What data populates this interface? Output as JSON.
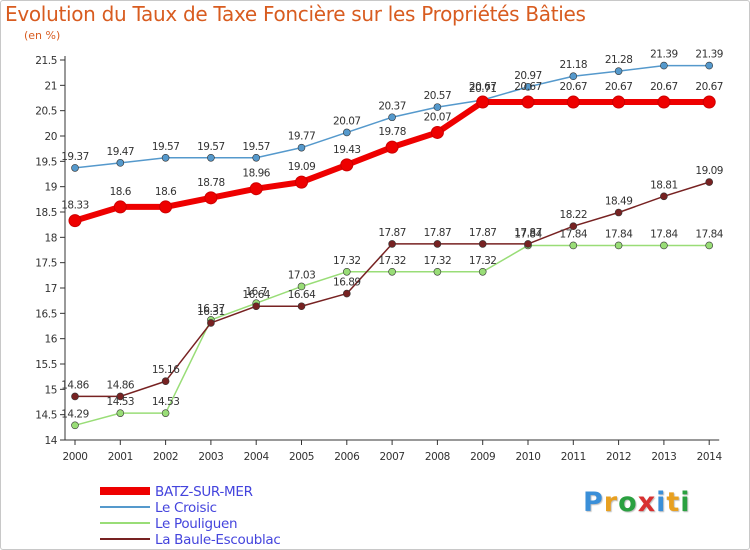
{
  "header": {
    "title": "Evolution du Taux de Taxe Foncière sur les Propriétés Bâties",
    "unit": "(en %)"
  },
  "brand": {
    "letters": [
      "P",
      "r",
      "o",
      "x",
      "i",
      "t",
      "i"
    ],
    "colors": [
      "#3a8fd8",
      "#e8a020",
      "#2aa040",
      "#d83030",
      "#3a8fd8",
      "#e8a020",
      "#2aa040"
    ]
  },
  "chart_data": {
    "type": "line",
    "x": [
      "2000",
      "2001",
      "2002",
      "2003",
      "2004",
      "2005",
      "2006",
      "2007",
      "2008",
      "2009",
      "2010",
      "2011",
      "2012",
      "2013",
      "2014"
    ],
    "ylim": [
      14,
      21.5
    ],
    "yticks": [
      14,
      14.5,
      15,
      15.5,
      16,
      16.5,
      17,
      17.5,
      18,
      18.5,
      19,
      19.5,
      20,
      20.5,
      21,
      21.5
    ],
    "grid": false,
    "legend_position": "bottom-left",
    "series": [
      {
        "name": "BATZ-SUR-MER",
        "color": "#ee0000",
        "width": 6,
        "marker": 6,
        "values": [
          18.33,
          18.6,
          18.6,
          18.78,
          18.96,
          19.09,
          19.43,
          19.78,
          20.07,
          20.67,
          20.67,
          20.67,
          20.67,
          20.67,
          20.67
        ],
        "labels": [
          "18.33",
          "18.6",
          "18.6",
          "18.78",
          "18.96",
          "19.09",
          "19.43",
          "19.78",
          "20.07",
          "20.67",
          "20.67",
          "20.67",
          "20.67",
          "20.67",
          "20.67"
        ]
      },
      {
        "name": "Le Croisic",
        "color": "#5599cc",
        "width": 1.5,
        "marker": 3.5,
        "values": [
          19.37,
          19.47,
          19.57,
          19.57,
          19.57,
          19.77,
          20.07,
          20.37,
          20.57,
          20.71,
          20.97,
          21.18,
          21.28,
          21.39,
          21.39
        ],
        "labels": [
          "19.37",
          "19.47",
          "19.57",
          "19.57",
          "19.57",
          "19.77",
          "20.07",
          "20.37",
          "20.57",
          "20.71",
          "20.97",
          "21.18",
          "21.28",
          "21.39",
          "21.39"
        ]
      },
      {
        "name": "Le Pouliguen",
        "color": "#99dd77",
        "width": 1.5,
        "marker": 3.5,
        "values": [
          14.29,
          14.53,
          14.53,
          16.37,
          16.7,
          17.03,
          17.32,
          17.32,
          17.32,
          17.32,
          17.84,
          17.84,
          17.84,
          17.84,
          17.84
        ],
        "labels": [
          "14.29",
          "14.53",
          "14.53",
          "16.37",
          "16.7",
          "17.03",
          "17.32",
          "17.32",
          "17.32",
          "17.32",
          "17.84",
          "17.84",
          "17.84",
          "17.84",
          "17.84"
        ]
      },
      {
        "name": "La Baule-Escoublac",
        "color": "#772222",
        "width": 1.5,
        "marker": 3.5,
        "values": [
          14.86,
          14.86,
          15.16,
          16.31,
          16.64,
          16.64,
          16.89,
          17.87,
          17.87,
          17.87,
          17.87,
          18.22,
          18.49,
          18.81,
          19.09
        ],
        "labels": [
          "14.86",
          "14.86",
          "15.16",
          "16.31",
          "16.64",
          "16.64",
          "16.89",
          "17.87",
          "17.87",
          "17.87",
          "17.87",
          "18.22",
          "18.49",
          "18.81",
          "19.09"
        ]
      }
    ]
  }
}
